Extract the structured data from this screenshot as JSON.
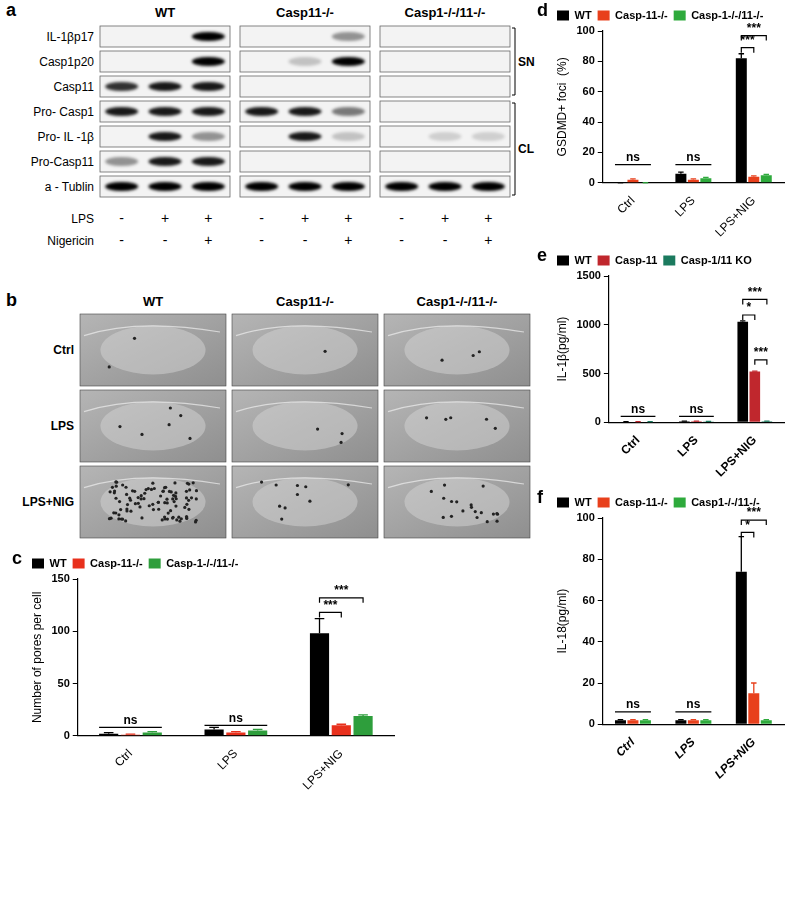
{
  "blot": {
    "panel": "a",
    "rows": [
      "IL-1βp17",
      "Casp1p20",
      "Casp11",
      "Pro- Casp1",
      "Pro- IL -1β",
      "Pro-Casp11",
      "a - Tublin"
    ],
    "groups": [
      {
        "name": "WT",
        "bands": [
          [
            0,
            0,
            1
          ],
          [
            0,
            0,
            1
          ],
          [
            0.8,
            0.9,
            0.9
          ],
          [
            0.9,
            0.9,
            0.9
          ],
          [
            0,
            0.9,
            0.4
          ],
          [
            0.4,
            0.9,
            0.9
          ],
          [
            1,
            1,
            1
          ]
        ]
      },
      {
        "name": "Casp11-/-",
        "bands": [
          [
            0,
            0,
            0.4
          ],
          [
            0,
            0.2,
            1
          ],
          [
            0,
            0,
            0
          ],
          [
            0.9,
            0.9,
            0.5
          ],
          [
            0,
            0.9,
            0.2
          ],
          [
            0,
            0,
            0
          ],
          [
            1,
            1,
            1
          ]
        ]
      },
      {
        "name": "Casp1-/-/11-/-",
        "bands": [
          [
            0,
            0,
            0
          ],
          [
            0,
            0,
            0
          ],
          [
            0,
            0,
            0
          ],
          [
            0,
            0,
            0
          ],
          [
            0,
            0.15,
            0.15
          ],
          [
            0,
            0,
            0
          ],
          [
            1,
            1,
            1
          ]
        ]
      }
    ],
    "fractions": [
      {
        "label": "SN",
        "rows": [
          "IL-1βp17",
          "Casp1p20",
          "Casp11"
        ]
      },
      {
        "label": "CL",
        "rows": [
          "Pro- Casp1",
          "Pro- IL -1β",
          "Pro-Casp11",
          "a - Tublin"
        ]
      }
    ],
    "treatments": [
      {
        "name": "LPS",
        "signs": [
          "-",
          "+",
          "+"
        ]
      },
      {
        "name": "Nigericin",
        "signs": [
          "-",
          "-",
          "+"
        ]
      }
    ]
  },
  "sem": {
    "panel": "b",
    "columns": [
      "WT",
      "Casp11-/-",
      "Casp1-/-/11-/-"
    ],
    "rows": [
      "Ctrl",
      "LPS",
      "LPS+NIG"
    ]
  },
  "chart_data": [
    {
      "panel": "c",
      "type": "bar",
      "categories": [
        "Ctrl",
        "LPS",
        "LPS+NIG"
      ],
      "y_label": "Number of pores per cell",
      "ylim": [
        0,
        150
      ],
      "yticks": [
        0,
        50,
        100,
        150
      ],
      "legend": "upper left",
      "series": [
        {
          "name": "WT",
          "color": "#000000",
          "values": [
            2,
            6,
            98
          ],
          "errors": [
            1,
            2,
            14
          ]
        },
        {
          "name": "Casp-11-/-",
          "color": "#e8301c",
          "values": [
            1,
            3,
            10
          ],
          "errors": [
            0.5,
            1,
            1
          ]
        },
        {
          "name": "Casp-1-/-/11-/-",
          "color": "#2e9e3c",
          "values": [
            3,
            5,
            19
          ],
          "errors": [
            1,
            1,
            1
          ]
        }
      ],
      "annotations": [
        {
          "text": "ns",
          "category": "Ctrl",
          "series": [
            "WT",
            "Casp-11-/-",
            "Casp-1-/-/11-/-"
          ],
          "y": 8
        },
        {
          "text": "ns",
          "category": "LPS",
          "series": [
            "WT",
            "Casp-11-/-",
            "Casp-1-/-/11-/-"
          ],
          "y": 10
        },
        {
          "text": "***",
          "category": "LPS+NIG",
          "series": [
            "WT",
            "Casp-11-/-"
          ],
          "y": 118
        },
        {
          "text": "***",
          "category": "LPS+NIG",
          "series": [
            "WT",
            "Casp-1-/-/11-/-"
          ],
          "y": 132
        }
      ]
    },
    {
      "panel": "d",
      "type": "bar",
      "categories": [
        "Ctrl",
        "LPS",
        "LPS+NIG"
      ],
      "y_label": "GSDMD+ foci  (%)",
      "ylim": [
        0,
        100
      ],
      "yticks": [
        0,
        20,
        40,
        60,
        80,
        100
      ],
      "legend": "upper left",
      "series": [
        {
          "name": "WT",
          "color": "#000000",
          "values": [
            0,
            6,
            82
          ],
          "errors": [
            0,
            1,
            3
          ]
        },
        {
          "name": "Casp-11-/-",
          "color": "#e8401c",
          "values": [
            2,
            2,
            4
          ],
          "errors": [
            0.5,
            0.5,
            0.5
          ]
        },
        {
          "name": "Casp-1-/-/11-/-",
          "color": "#2eaa3c",
          "values": [
            0,
            3,
            5
          ],
          "errors": [
            0,
            0.5,
            0.5
          ]
        }
      ],
      "annotations": [
        {
          "text": "ns",
          "category": "Ctrl",
          "series": [
            "WT",
            "Casp-11-/-",
            "Casp-1-/-/11-/-"
          ],
          "y": 12
        },
        {
          "text": "ns",
          "category": "LPS",
          "series": [
            "WT",
            "Casp-11-/-",
            "Casp-1-/-/11-/-"
          ],
          "y": 12
        },
        {
          "text": "***",
          "category": "LPS+NIG",
          "series": [
            "WT",
            "Casp-11-/-"
          ],
          "y": 89
        },
        {
          "text": "***",
          "category": "LPS+NIG",
          "series": [
            "WT",
            "Casp-1-/-/11-/-"
          ],
          "y": 97
        }
      ]
    },
    {
      "panel": "e",
      "type": "bar",
      "categories": [
        "Ctrl",
        "LPS",
        "LPS+NIG"
      ],
      "y_label": "IL-1β(pg/ml)",
      "ylim": [
        0,
        1500
      ],
      "yticks": [
        0,
        500,
        1000,
        1500
      ],
      "legend": "upper left",
      "series": [
        {
          "name": "WT",
          "color": "#000000",
          "values": [
            5,
            10,
            1030
          ],
          "errors": [
            1,
            2,
            10
          ]
        },
        {
          "name": "Casp-11",
          "color": "#c0272d",
          "values": [
            5,
            10,
            520
          ],
          "errors": [
            1,
            2,
            5
          ]
        },
        {
          "name": "Casp-1/11 KO",
          "color": "#1b7a5e",
          "values": [
            5,
            8,
            10
          ],
          "errors": [
            1,
            1,
            1
          ]
        }
      ],
      "annotations": [
        {
          "text": "ns",
          "category": "Ctrl",
          "series": [
            "WT",
            "Casp-11",
            "Casp-1/11 KO"
          ],
          "y": 60
        },
        {
          "text": "ns",
          "category": "LPS",
          "series": [
            "WT",
            "Casp-11",
            "Casp-1/11 KO"
          ],
          "y": 60
        },
        {
          "text": "*",
          "category": "LPS+NIG",
          "series": [
            "WT",
            "Casp-11"
          ],
          "y": 1100
        },
        {
          "text": "***",
          "category": "LPS+NIG",
          "series": [
            "WT",
            "Casp-1/11 KO"
          ],
          "y": 1260
        },
        {
          "text": "***",
          "category": "LPS+NIG",
          "series": [
            "Casp-11",
            "Casp-1/11 KO"
          ],
          "y": 640
        }
      ]
    },
    {
      "panel": "f",
      "type": "bar",
      "categories": [
        "Ctrl",
        "LPS",
        "LPS+NIG"
      ],
      "y_label": "IL-18(pg/ml)",
      "ylim": [
        0,
        100
      ],
      "yticks": [
        0,
        20,
        40,
        60,
        80,
        100
      ],
      "legend": "upper left",
      "series": [
        {
          "name": "WT",
          "color": "#000000",
          "values": [
            2,
            2,
            74
          ],
          "errors": [
            0.3,
            0.3,
            17
          ]
        },
        {
          "name": "Casp-11-/-",
          "color": "#e8401c",
          "values": [
            2,
            2,
            15
          ],
          "errors": [
            0.3,
            0.3,
            5
          ]
        },
        {
          "name": "Casp1-/-/11-/-",
          "color": "#2eaa3c",
          "values": [
            2,
            2,
            2
          ],
          "errors": [
            0.3,
            0.3,
            0.3
          ]
        }
      ],
      "annotations": [
        {
          "text": "ns",
          "category": "Ctrl",
          "series": [
            "WT",
            "Casp-11-/-",
            "Casp1-/-/11-/-"
          ],
          "y": 6
        },
        {
          "text": "ns",
          "category": "LPS",
          "series": [
            "WT",
            "Casp-11-/-",
            "Casp1-/-/11-/-"
          ],
          "y": 6
        },
        {
          "text": "*",
          "category": "LPS+NIG",
          "series": [
            "WT",
            "Casp-11-/-"
          ],
          "y": 93
        },
        {
          "text": "***",
          "category": "LPS+NIG",
          "series": [
            "WT",
            "Casp1-/-/11-/-"
          ],
          "y": 99
        }
      ]
    }
  ]
}
